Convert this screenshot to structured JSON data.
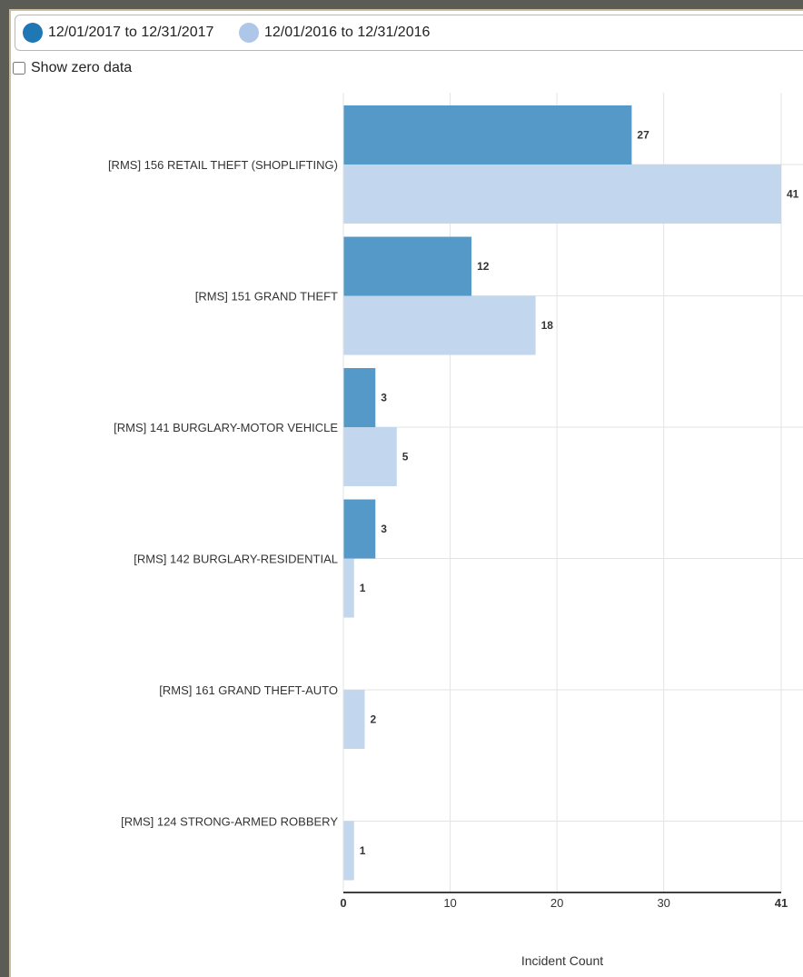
{
  "legend": {
    "items": [
      {
        "label": "12/01/2017 to 12/31/2017",
        "color": "#1f78b4"
      },
      {
        "label": "12/01/2016 to 12/31/2016",
        "color": "#aec7e8"
      }
    ]
  },
  "controls": {
    "show_zero_label": "Show zero data"
  },
  "chart_data": {
    "type": "bar",
    "orientation": "horizontal",
    "title": "",
    "xlabel": "Incident Count",
    "ylabel": "",
    "xlim": [
      0,
      41
    ],
    "x_ticks": [
      0,
      10,
      20,
      30,
      41
    ],
    "grid": true,
    "categories": [
      "[RMS] 156 RETAIL THEFT (SHOPLIFTING)",
      "[RMS] 151 GRAND THEFT",
      "[RMS] 141 BURGLARY-MOTOR VEHICLE",
      "[RMS] 142 BURGLARY-RESIDENTIAL",
      "[RMS] 161 GRAND THEFT-AUTO",
      "[RMS] 124 STRONG-ARMED ROBBERY"
    ],
    "series": [
      {
        "name": "12/01/2017 to 12/31/2017",
        "color": "#5499c7",
        "values": [
          27,
          12,
          3,
          3,
          0,
          0
        ]
      },
      {
        "name": "12/01/2016 to 12/31/2016",
        "color": "#c2d6ee",
        "values": [
          41,
          18,
          5,
          1,
          2,
          1
        ]
      }
    ]
  }
}
